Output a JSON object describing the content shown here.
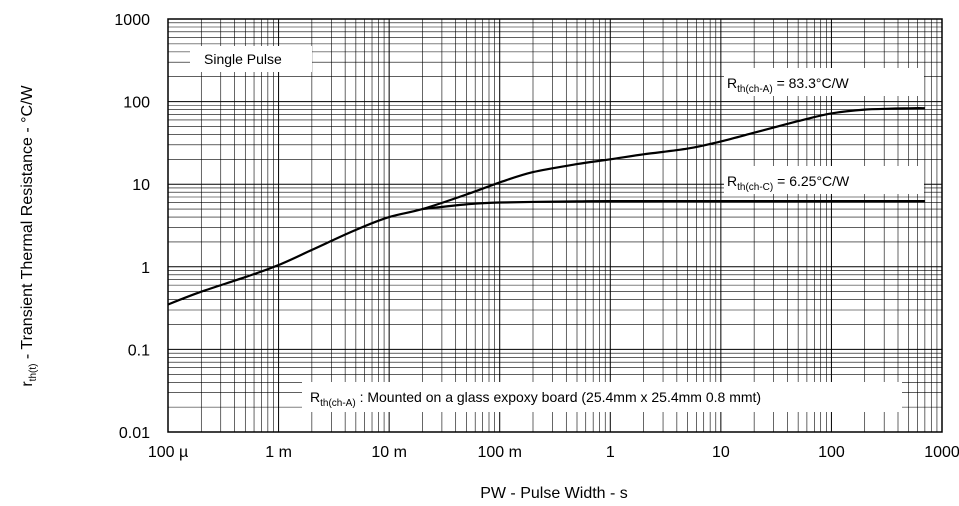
{
  "chart_data": {
    "type": "line",
    "log_x": true,
    "log_y": true,
    "xlim": [
      0.0001,
      1000
    ],
    "ylim": [
      0.01,
      1000
    ],
    "grid": true,
    "xlabel": "PW - Pulse Width - s",
    "ylabel_prefix": "r",
    "ylabel_sub": "th(t)",
    "ylabel_rest": " - Transient Thermal Resistance - °C/W",
    "x_tick_labels": [
      "100 µ",
      "1 m",
      "10 m",
      "100 m",
      "1",
      "10",
      "100",
      "1000"
    ],
    "y_tick_labels": [
      "0.01",
      "0.1",
      "1",
      "10",
      "100",
      "1000"
    ],
    "annotations": {
      "single_pulse": "Single Pulse",
      "rth_a": {
        "prefix": "R",
        "sub": "th(ch-A)",
        "rest": " = 83.3°C/W"
      },
      "rth_c": {
        "prefix": "R",
        "sub": "th(ch-C)",
        "rest": " = 6.25°C/W"
      },
      "mount": {
        "prefix": "R",
        "sub": "th(ch-A)",
        "rest": " : Mounted on a glass expoxy board (25.4mm x 25.4mm 0.8 mmt)"
      }
    },
    "series": [
      {
        "x": [
          0.0001,
          0.0002,
          0.0005,
          0.001,
          0.002,
          0.005,
          0.01,
          0.02,
          0.05,
          0.1,
          0.2,
          0.5,
          1,
          2,
          5,
          10,
          20,
          50,
          100,
          200,
          500,
          700
        ],
        "values": [
          0.35,
          0.5,
          0.75,
          1.05,
          1.6,
          2.8,
          4.0,
          5.0,
          7.5,
          10.5,
          14,
          17.5,
          20,
          23,
          27,
          33,
          42,
          58,
          72,
          80,
          83,
          83.3
        ]
      },
      {
        "x": [
          0.02,
          0.05,
          0.1,
          0.5,
          1,
          10,
          100,
          700
        ],
        "values": [
          5.0,
          5.7,
          6.0,
          6.2,
          6.25,
          6.25,
          6.25,
          6.25
        ]
      }
    ]
  }
}
